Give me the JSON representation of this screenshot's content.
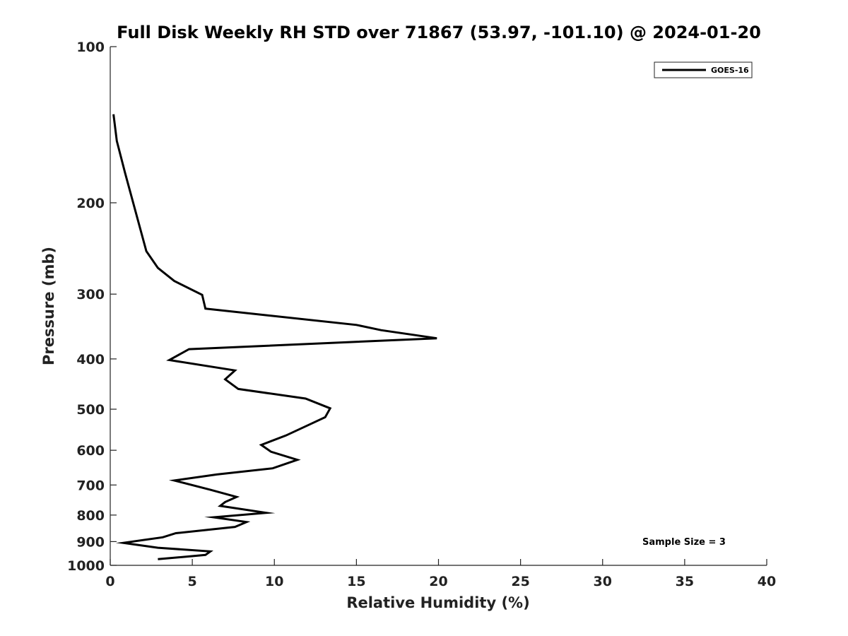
{
  "chart_data": {
    "type": "line",
    "title": "Full Disk Weekly RH STD over 71867 (53.97, -101.10) @ 2024-01-20",
    "xlabel": "Relative Humidity (%)",
    "ylabel": "Pressure (mb)",
    "xlim": [
      0,
      40
    ],
    "ylim": [
      100,
      1000
    ],
    "y_scale": "log",
    "y_reversed": true,
    "x_ticks": [
      "0",
      "5",
      "10",
      "15",
      "20",
      "25",
      "30",
      "35",
      "40"
    ],
    "y_ticks": [
      "100",
      "200",
      "300",
      "400",
      "500",
      "600",
      "700",
      "800",
      "900",
      "1000"
    ],
    "grid": false,
    "legend_position": "top-right",
    "series": [
      {
        "name": "GOES-16",
        "color": "#000000",
        "points": [
          [
            0.2,
            135
          ],
          [
            0.4,
            152
          ],
          [
            0.9,
            175
          ],
          [
            2.2,
            248
          ],
          [
            2.9,
            267
          ],
          [
            3.9,
            283
          ],
          [
            5.6,
            301
          ],
          [
            5.8,
            320
          ],
          [
            15.0,
            344
          ],
          [
            16.5,
            352
          ],
          [
            19.9,
            365
          ],
          [
            4.8,
            383
          ],
          [
            3.6,
            402
          ],
          [
            7.6,
            421
          ],
          [
            7.0,
            438
          ],
          [
            7.8,
            457
          ],
          [
            11.9,
            477
          ],
          [
            13.4,
            498
          ],
          [
            13.1,
            518
          ],
          [
            12.1,
            536
          ],
          [
            10.7,
            562
          ],
          [
            9.2,
            586
          ],
          [
            9.8,
            604
          ],
          [
            11.4,
            626
          ],
          [
            9.9,
            650
          ],
          [
            6.5,
            668
          ],
          [
            3.9,
            686
          ],
          [
            6.1,
            715
          ],
          [
            7.7,
            738
          ],
          [
            7.0,
            755
          ],
          [
            6.7,
            768
          ],
          [
            9.5,
            792
          ],
          [
            6.3,
            808
          ],
          [
            8.3,
            825
          ],
          [
            7.6,
            843
          ],
          [
            4.0,
            867
          ],
          [
            3.2,
            883
          ],
          [
            0.8,
            905
          ],
          [
            2.9,
            925
          ],
          [
            6.1,
            940
          ],
          [
            5.8,
            955
          ],
          [
            2.9,
            973
          ]
        ]
      }
    ],
    "annotations": [
      "Sample Size = 3"
    ]
  }
}
